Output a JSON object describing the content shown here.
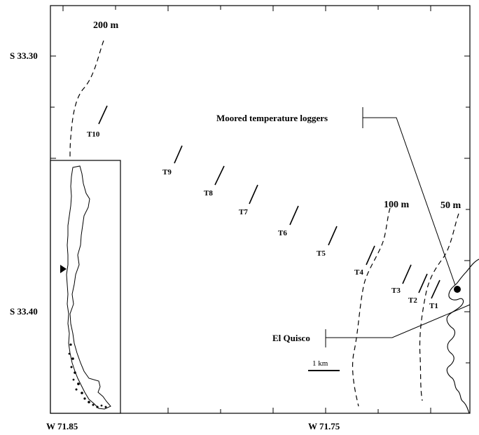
{
  "axes": {
    "latitude_ticks": [
      "S 33.30",
      "S 33.40"
    ],
    "longitude_ticks": [
      "W 71.85",
      "W 71.75"
    ]
  },
  "isobaths": [
    {
      "label": "200 m"
    },
    {
      "label": "100 m"
    },
    {
      "label": "50 m"
    }
  ],
  "transects": [
    "T1",
    "T2",
    "T3",
    "T4",
    "T5",
    "T6",
    "T7",
    "T8",
    "T9",
    "T10"
  ],
  "annotations": {
    "loggers": "Moored temperature loggers",
    "town": "El Quisco"
  },
  "scale_bar": {
    "label": "1 km"
  },
  "colors": {
    "ink": "#000000",
    "background": "#ffffff"
  }
}
